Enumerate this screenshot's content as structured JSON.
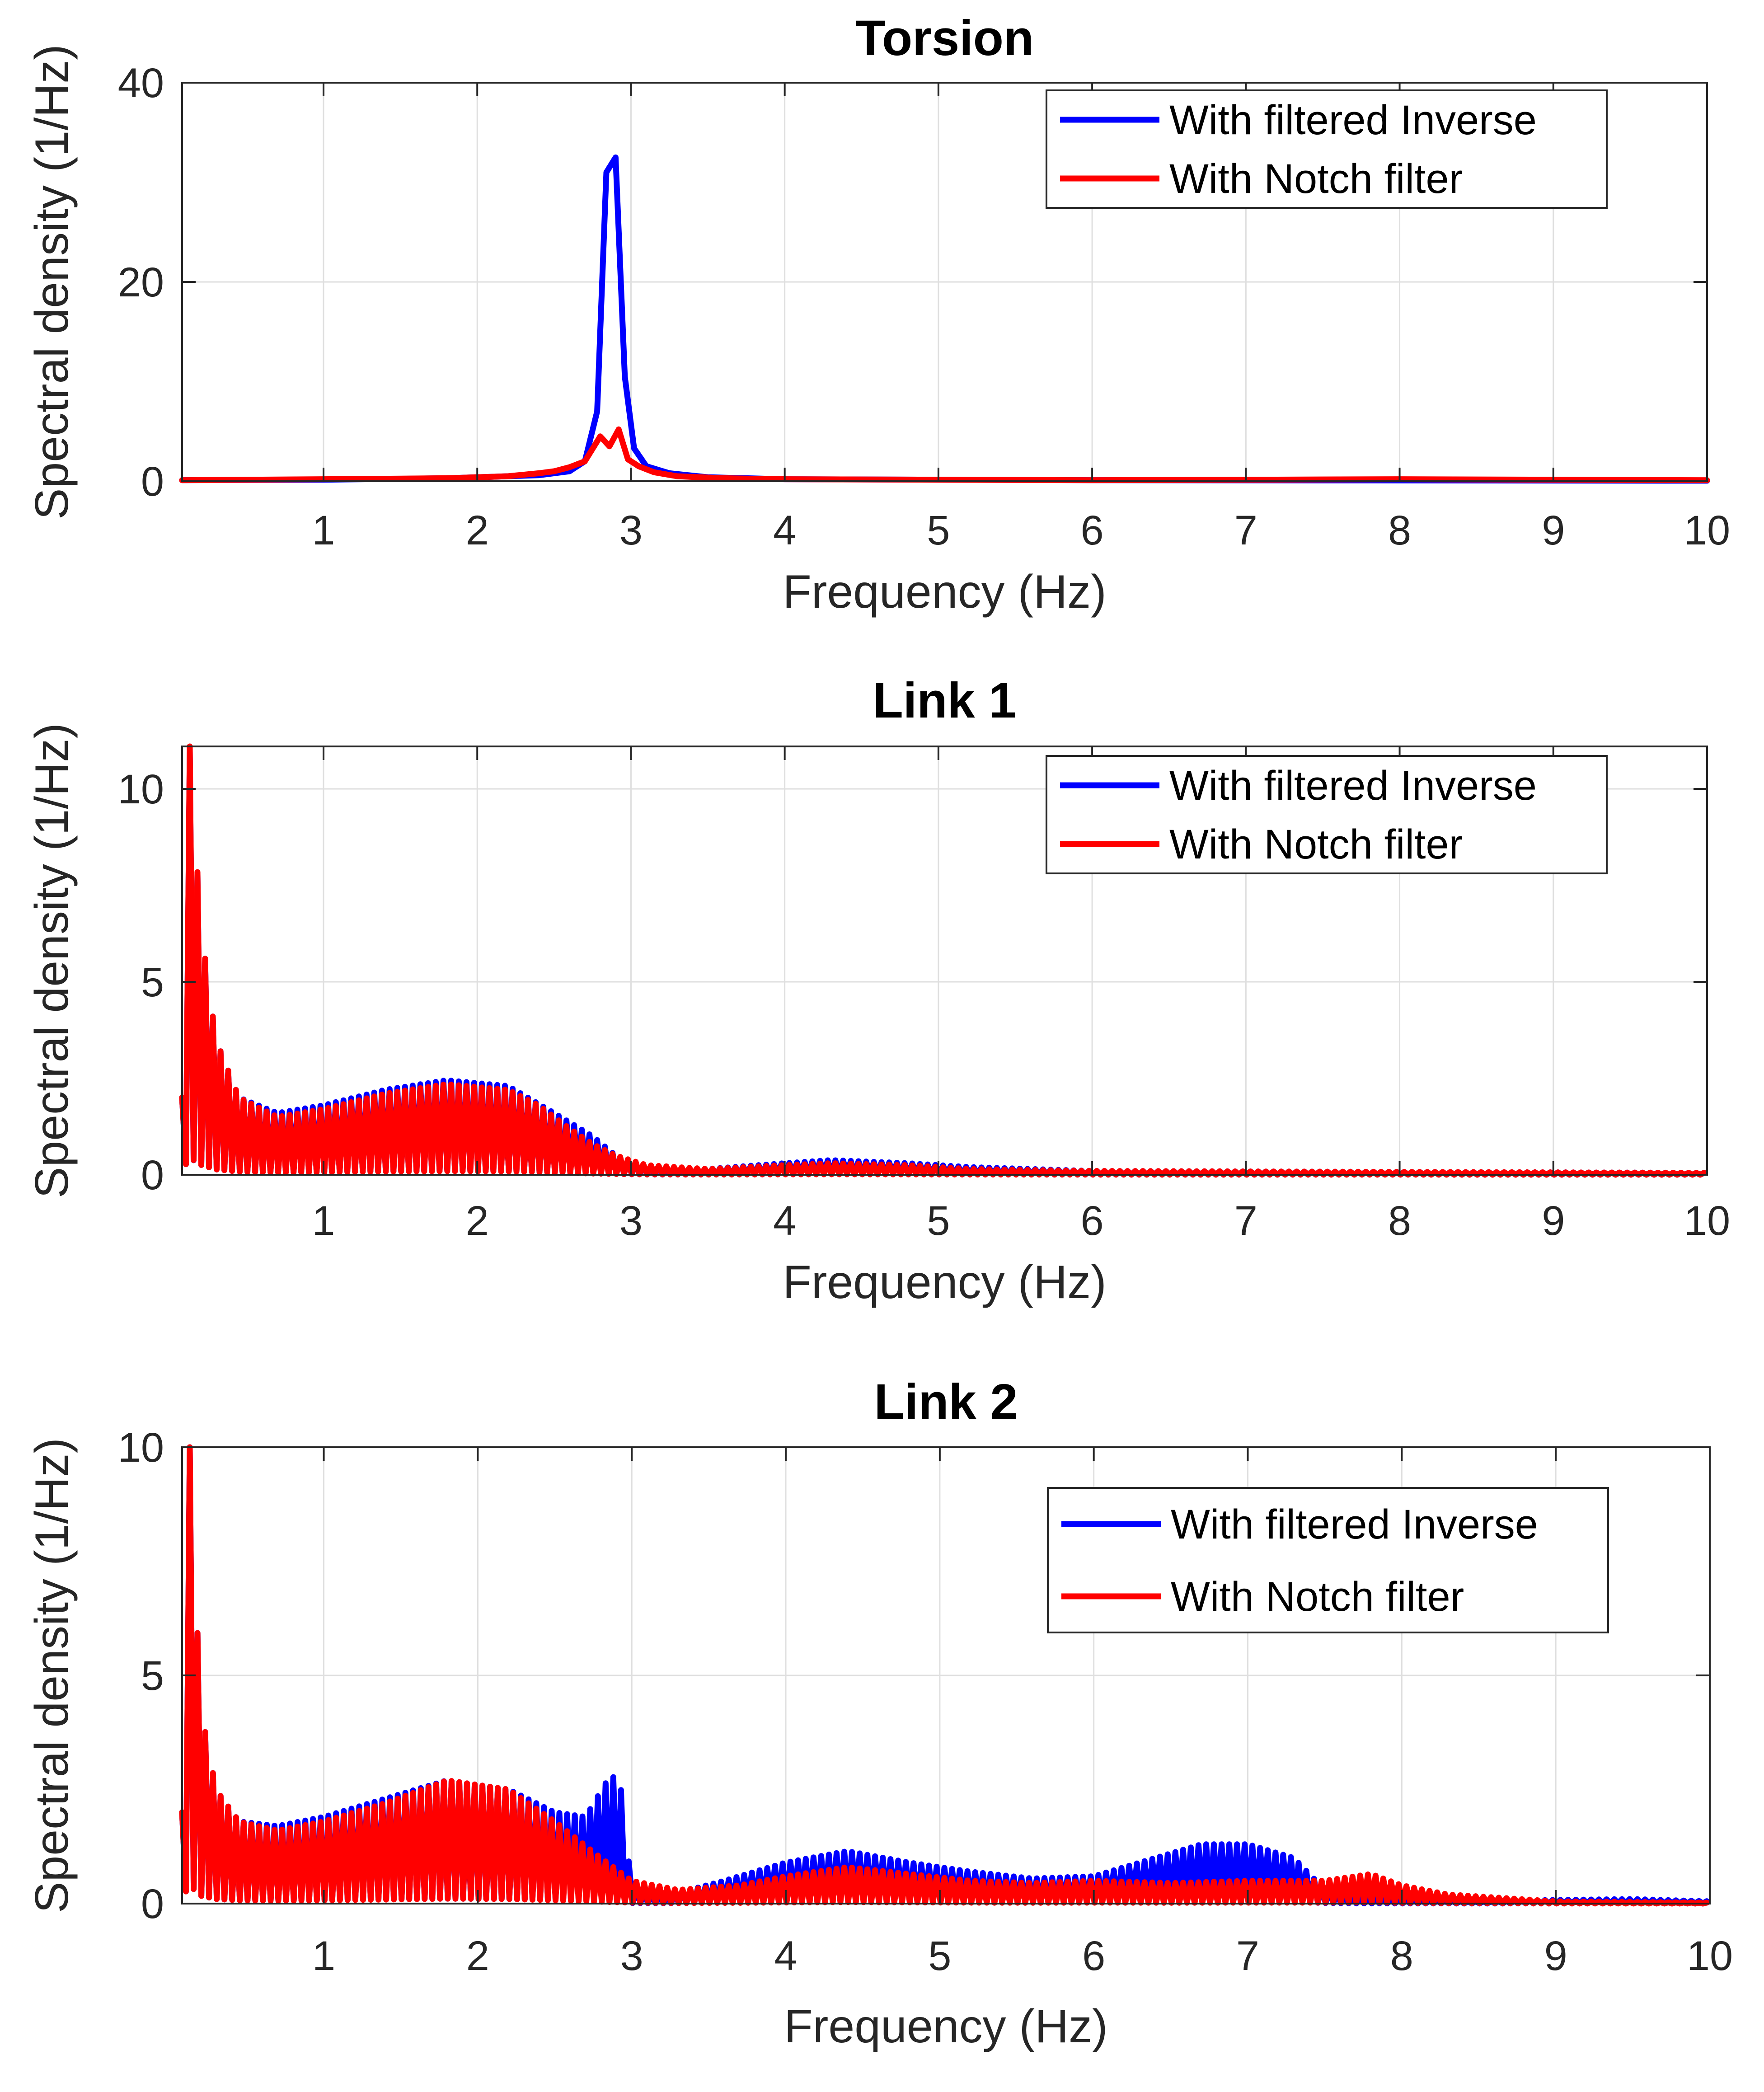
{
  "colors": {
    "inverse": "#0000ff",
    "notch": "#ff0000",
    "grid": "#dfdfdf",
    "axis": "#262626",
    "background": "#ffffff"
  },
  "legend": {
    "inverse_label": "With filtered Inverse",
    "notch_label": "With Notch filter"
  },
  "chart_data": [
    {
      "type": "line",
      "title": "Torsion",
      "xlabel": "Frequency (Hz)",
      "ylabel": "Spectral density (1/Hz)",
      "xlim": [
        0.08,
        10
      ],
      "ylim": [
        0,
        40
      ],
      "xticks": [
        1,
        2,
        3,
        4,
        5,
        6,
        7,
        8,
        9,
        10
      ],
      "yticks": [
        0,
        20,
        40
      ],
      "grid": true,
      "legend_position": "top-right",
      "series": [
        {
          "name": "With filtered Inverse",
          "color": "#0000ff",
          "points": [
            [
              0.08,
              0.1
            ],
            [
              1.0,
              0.15
            ],
            [
              1.8,
              0.3
            ],
            [
              2.4,
              0.6
            ],
            [
              2.6,
              1.0
            ],
            [
              2.7,
              2.0
            ],
            [
              2.78,
              7.0
            ],
            [
              2.84,
              31.0
            ],
            [
              2.9,
              32.5
            ],
            [
              2.96,
              10.5
            ],
            [
              3.02,
              3.3
            ],
            [
              3.1,
              1.5
            ],
            [
              3.25,
              0.8
            ],
            [
              3.5,
              0.4
            ],
            [
              4.0,
              0.2
            ],
            [
              6.0,
              0.1
            ],
            [
              10.0,
              0.05
            ]
          ]
        },
        {
          "name": "With Notch filter",
          "color": "#ff0000",
          "points": [
            [
              0.08,
              0.1
            ],
            [
              1.0,
              0.2
            ],
            [
              1.8,
              0.3
            ],
            [
              2.0,
              0.4
            ],
            [
              2.2,
              0.5
            ],
            [
              2.4,
              0.8
            ],
            [
              2.5,
              1.0
            ],
            [
              2.6,
              1.4
            ],
            [
              2.7,
              2.0
            ],
            [
              2.8,
              4.5
            ],
            [
              2.86,
              3.5
            ],
            [
              2.92,
              5.2
            ],
            [
              2.98,
              2.2
            ],
            [
              3.05,
              1.5
            ],
            [
              3.15,
              0.9
            ],
            [
              3.3,
              0.5
            ],
            [
              3.6,
              0.3
            ],
            [
              4.0,
              0.2
            ],
            [
              6.0,
              0.1
            ],
            [
              8.0,
              0.2
            ],
            [
              10.0,
              0.1
            ]
          ]
        }
      ]
    },
    {
      "type": "line",
      "title": "Link 1",
      "xlabel": "Frequency (Hz)",
      "ylabel": "Spectral density (1/Hz)",
      "xlim": [
        0.08,
        10
      ],
      "ylim": [
        0,
        11.1
      ],
      "xticks": [
        1,
        2,
        3,
        4,
        5,
        6,
        7,
        8,
        9,
        10
      ],
      "yticks": [
        0,
        5,
        10
      ],
      "grid": true,
      "legend_position": "top-right",
      "series": [
        {
          "name": "With filtered Inverse",
          "color": "#0000ff",
          "step": 0.05,
          "envelope": [
            [
              0.08,
              2.0
            ],
            [
              0.1,
              6.0
            ],
            [
              0.13,
              11.0
            ],
            [
              0.2,
              6.5
            ],
            [
              0.3,
              3.5
            ],
            [
              0.45,
              2.0
            ],
            [
              0.7,
              1.6
            ],
            [
              1.0,
              1.8
            ],
            [
              1.4,
              2.2
            ],
            [
              1.8,
              2.45
            ],
            [
              2.2,
              2.3
            ],
            [
              2.5,
              1.6
            ],
            [
              2.75,
              1.0
            ],
            [
              2.9,
              0.5
            ],
            [
              3.1,
              0.2
            ],
            [
              3.5,
              0.15
            ],
            [
              4.0,
              0.3
            ],
            [
              4.3,
              0.38
            ],
            [
              4.8,
              0.3
            ],
            [
              5.2,
              0.2
            ],
            [
              6.0,
              0.1
            ],
            [
              10.0,
              0.05
            ]
          ]
        },
        {
          "name": "With Notch filter",
          "color": "#ff0000",
          "step": 0.05,
          "envelope": [
            [
              0.08,
              2.0
            ],
            [
              0.1,
              6.0
            ],
            [
              0.13,
              11.2
            ],
            [
              0.2,
              6.5
            ],
            [
              0.3,
              3.5
            ],
            [
              0.45,
              2.0
            ],
            [
              0.7,
              1.5
            ],
            [
              1.0,
              1.7
            ],
            [
              1.4,
              2.1
            ],
            [
              1.8,
              2.35
            ],
            [
              2.2,
              2.2
            ],
            [
              2.4,
              1.8
            ],
            [
              2.6,
              1.2
            ],
            [
              2.75,
              0.8
            ],
            [
              2.9,
              0.5
            ],
            [
              3.1,
              0.25
            ],
            [
              3.5,
              0.15
            ],
            [
              4.0,
              0.25
            ],
            [
              4.3,
              0.3
            ],
            [
              4.8,
              0.25
            ],
            [
              5.2,
              0.15
            ],
            [
              6.0,
              0.1
            ],
            [
              10.0,
              0.05
            ]
          ]
        }
      ]
    },
    {
      "type": "line",
      "title": "Link 2",
      "xlabel": "Frequency (Hz)",
      "ylabel": "Spectral density (1/Hz)",
      "xlim": [
        0.08,
        10
      ],
      "ylim": [
        0,
        10
      ],
      "xticks": [
        1,
        2,
        3,
        4,
        5,
        6,
        7,
        8,
        9,
        10
      ],
      "yticks": [
        0,
        5,
        10
      ],
      "grid": true,
      "legend_position": "top-right",
      "series": [
        {
          "name": "With filtered Inverse",
          "color": "#0000ff",
          "step": 0.05,
          "envelope": [
            [
              0.08,
              2.0
            ],
            [
              0.1,
              6.0
            ],
            [
              0.13,
              10.0
            ],
            [
              0.2,
              4.3
            ],
            [
              0.3,
              2.5
            ],
            [
              0.45,
              1.8
            ],
            [
              0.7,
              1.7
            ],
            [
              1.0,
              1.9
            ],
            [
              1.4,
              2.3
            ],
            [
              1.8,
              2.7
            ],
            [
              2.2,
              2.5
            ],
            [
              2.5,
              2.0
            ],
            [
              2.7,
              1.9
            ],
            [
              2.85,
              2.75
            ],
            [
              2.92,
              2.8
            ],
            [
              3.0,
              0.3
            ],
            [
              3.2,
              0.15
            ],
            [
              3.6,
              0.5
            ],
            [
              4.0,
              0.9
            ],
            [
              4.4,
              1.15
            ],
            [
              4.8,
              0.9
            ],
            [
              5.2,
              0.7
            ],
            [
              5.6,
              0.55
            ],
            [
              6.0,
              0.6
            ],
            [
              6.3,
              0.9
            ],
            [
              6.7,
              1.3
            ],
            [
              7.0,
              1.3
            ],
            [
              7.3,
              1.0
            ],
            [
              7.5,
              0.3
            ],
            [
              7.7,
              0.1
            ],
            [
              8.5,
              0.05
            ],
            [
              9.0,
              0.08
            ],
            [
              9.5,
              0.1
            ],
            [
              10.0,
              0.05
            ]
          ]
        },
        {
          "name": "With Notch filter",
          "color": "#ff0000",
          "step": 0.05,
          "envelope": [
            [
              0.08,
              2.0
            ],
            [
              0.1,
              6.0
            ],
            [
              0.13,
              10.0
            ],
            [
              0.2,
              4.3
            ],
            [
              0.3,
              2.5
            ],
            [
              0.45,
              1.8
            ],
            [
              0.7,
              1.6
            ],
            [
              1.0,
              1.8
            ],
            [
              1.4,
              2.2
            ],
            [
              1.8,
              2.7
            ],
            [
              2.2,
              2.5
            ],
            [
              2.5,
              1.8
            ],
            [
              2.8,
              1.0
            ],
            [
              3.0,
              0.5
            ],
            [
              3.3,
              0.3
            ],
            [
              3.7,
              0.4
            ],
            [
              4.0,
              0.6
            ],
            [
              4.4,
              0.8
            ],
            [
              4.8,
              0.65
            ],
            [
              5.2,
              0.5
            ],
            [
              5.6,
              0.45
            ],
            [
              6.0,
              0.5
            ],
            [
              6.5,
              0.45
            ],
            [
              7.0,
              0.5
            ],
            [
              7.5,
              0.5
            ],
            [
              7.8,
              0.65
            ],
            [
              8.0,
              0.4
            ],
            [
              8.3,
              0.2
            ],
            [
              9.0,
              0.05
            ],
            [
              10.0,
              0.02
            ]
          ]
        }
      ]
    }
  ]
}
